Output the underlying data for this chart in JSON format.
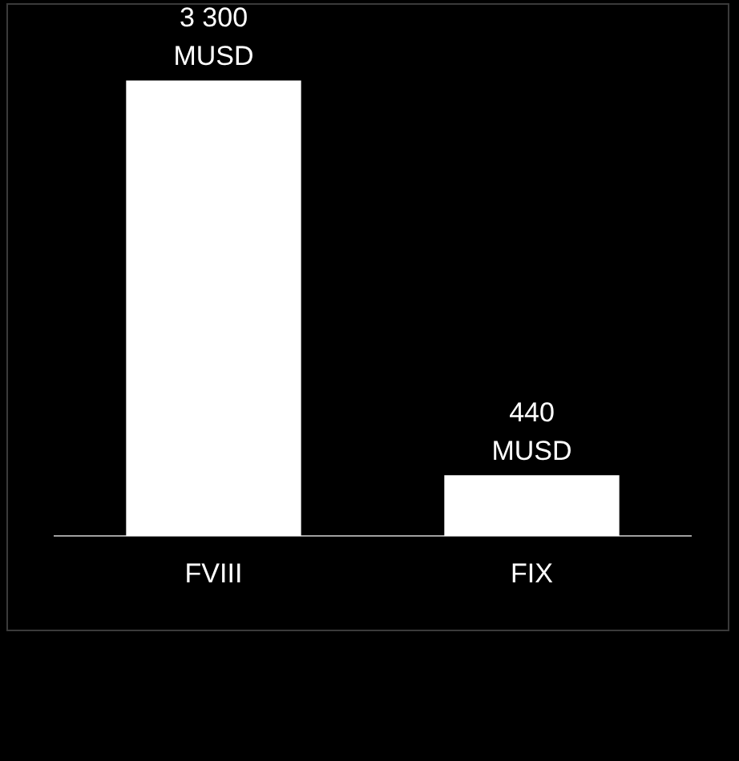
{
  "chart_data": {
    "type": "bar",
    "categories": [
      "FVIII",
      "FIX"
    ],
    "values": [
      3300,
      440
    ],
    "color": "#ffffff",
    "value_labels": [
      "3 300\nMUSD",
      "440\nMUSD"
    ],
    "grid": false,
    "legend": false,
    "tick_labels": "x"
  }
}
